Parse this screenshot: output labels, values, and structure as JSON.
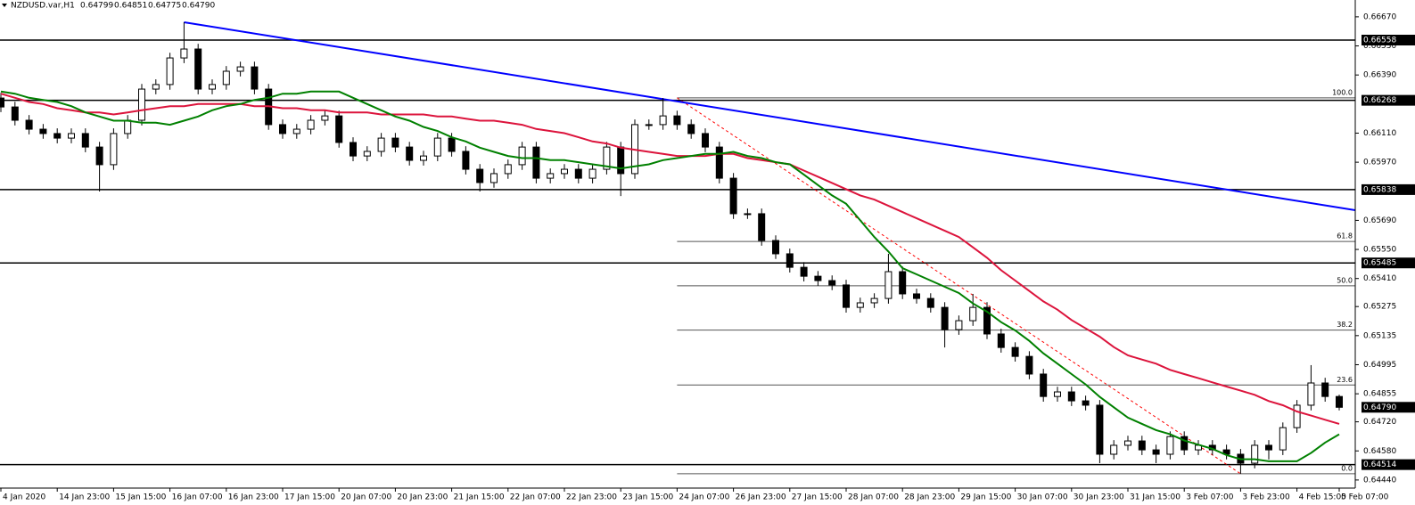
{
  "header": {
    "symbol": "NZDUSD.var,H1",
    "quote": [
      0.64799,
      0.64851,
      0.64775,
      {
        "value": 0.6479,
        "label": "0.64790"
      }
    ]
  },
  "chart_data": {
    "type": "candlestick",
    "categories": [
      "4 Jan 2020",
      null,
      null,
      null,
      "14 Jan 23:00",
      null,
      null,
      null,
      "15 Jan 15:00",
      null,
      null,
      null,
      "16 Jan 07:00",
      null,
      null,
      null,
      "16 Jan 23:00",
      null,
      null,
      null,
      "17 Jan 15:00",
      null,
      null,
      null,
      "20 Jan 07:00",
      null,
      null,
      null,
      "20 Jan 23:00",
      null,
      null,
      null,
      "21 Jan 15:00",
      null,
      null,
      null,
      "22 Jan 07:00",
      null,
      null,
      null,
      "22 Jan 23:00",
      null,
      null,
      null,
      "23 Jan 15:00",
      null,
      null,
      null,
      "24 Jan 07:00",
      null,
      null,
      null,
      "26 Jan 23:00",
      null,
      null,
      null,
      "27 Jan 15:00",
      null,
      null,
      null,
      "28 Jan 07:00",
      null,
      null,
      null,
      "28 Jan 23:00",
      null,
      null,
      null,
      "29 Jan 15:00",
      null,
      null,
      null,
      "30 Jan 07:00",
      null,
      null,
      null,
      "30 Jan 23:00",
      null,
      null,
      null,
      "31 Jan 15:00",
      null,
      null,
      null,
      "3 Feb 07:00",
      null,
      null,
      null,
      "3 Feb 23:00",
      null,
      null,
      null,
      "4 Feb 15:00",
      null,
      null,
      "5 Feb 07:00"
    ],
    "open": [
      0.66279,
      0.66236,
      0.66172,
      0.66129,
      0.66108,
      0.66086,
      0.66108,
      0.66043,
      0.65958,
      0.66108,
      0.66172,
      0.66322,
      0.66344,
      0.66472,
      0.66515,
      0.66322,
      0.66344,
      0.66408,
      0.66429,
      0.66322,
      0.66151,
      0.66108,
      0.66129,
      0.66172,
      0.66193,
      0.66065,
      0.66,
      0.66022,
      0.66086,
      0.66043,
      0.65979,
      0.66,
      0.66086,
      0.66022,
      0.65936,
      0.65872,
      0.65915,
      0.65958,
      0.66043,
      0.65893,
      0.65915,
      0.65936,
      0.65893,
      0.65936,
      0.66043,
      0.65915,
      0.66151,
      0.66151,
      0.66193,
      0.66151,
      0.66108,
      0.66043,
      0.65893,
      0.65722,
      0.65722,
      0.65593,
      0.65529,
      0.65464,
      0.65421,
      0.654,
      0.65379,
      0.65271,
      0.65293,
      0.65314,
      0.65443,
      0.65336,
      0.65314,
      0.65271,
      0.65164,
      0.65207,
      0.65271,
      0.65143,
      0.65078,
      0.65035,
      0.6495,
      0.64842,
      0.64864,
      0.64821,
      0.648,
      0.64564,
      0.64607,
      0.64628,
      0.64585,
      0.64564,
      0.64649,
      0.64585,
      0.64607,
      0.64585,
      0.64564,
      0.64521,
      0.64607,
      0.64585,
      0.64692,
      0.648,
      0.64907,
      0.64842
    ],
    "high": [
      0.66304,
      0.66261,
      0.66197,
      0.66154,
      0.66133,
      0.66133,
      0.66133,
      0.66068,
      0.66133,
      0.66197,
      0.66347,
      0.66369,
      0.66497,
      0.66644,
      0.6654,
      0.66369,
      0.66433,
      0.66454,
      0.66454,
      0.66347,
      0.66176,
      0.66154,
      0.66197,
      0.66218,
      0.66218,
      0.6609,
      0.66047,
      0.66111,
      0.66111,
      0.66068,
      0.66025,
      0.66111,
      0.66111,
      0.66047,
      0.65961,
      0.6594,
      0.65983,
      0.66068,
      0.66068,
      0.6594,
      0.65961,
      0.65961,
      0.65961,
      0.66068,
      0.66068,
      0.66176,
      0.66176,
      0.66279,
      0.66218,
      0.66176,
      0.66133,
      0.66068,
      0.65918,
      0.65747,
      0.65747,
      0.65618,
      0.65554,
      0.65489,
      0.65446,
      0.65425,
      0.65404,
      0.65318,
      0.65339,
      0.65529,
      0.65468,
      0.65361,
      0.65339,
      0.65296,
      0.65232,
      0.65336,
      0.65296,
      0.65168,
      0.65103,
      0.6506,
      0.64975,
      0.64889,
      0.64889,
      0.64846,
      0.64825,
      0.64632,
      0.64653,
      0.64653,
      0.6461,
      0.64674,
      0.64674,
      0.64632,
      0.64632,
      0.6461,
      0.64589,
      0.64632,
      0.64632,
      0.64717,
      0.64825,
      0.64993,
      0.64932,
      0.64851
    ],
    "low": [
      0.66211,
      0.66147,
      0.66104,
      0.66083,
      0.66061,
      0.66061,
      0.66018,
      0.65829,
      0.65933,
      0.66083,
      0.66147,
      0.66297,
      0.66319,
      0.66447,
      0.66297,
      0.66297,
      0.66319,
      0.66383,
      0.66297,
      0.66126,
      0.66083,
      0.66083,
      0.66104,
      0.66147,
      0.6604,
      0.65975,
      0.65975,
      0.65997,
      0.66018,
      0.65954,
      0.65954,
      0.65975,
      0.65997,
      0.65911,
      0.65829,
      0.65847,
      0.6589,
      0.65933,
      0.65868,
      0.65868,
      0.6589,
      0.65868,
      0.65868,
      0.65911,
      0.65807,
      0.6589,
      0.66126,
      0.66126,
      0.66126,
      0.66083,
      0.66018,
      0.65868,
      0.65697,
      0.65697,
      0.65568,
      0.65504,
      0.65439,
      0.65396,
      0.65375,
      0.65354,
      0.65246,
      0.65246,
      0.65268,
      0.65289,
      0.65311,
      0.65289,
      0.65246,
      0.65078,
      0.65139,
      0.65182,
      0.65118,
      0.65053,
      0.6501,
      0.64925,
      0.64817,
      0.64817,
      0.64796,
      0.64775,
      0.64521,
      0.64539,
      0.64582,
      0.6456,
      0.64521,
      0.64539,
      0.6456,
      0.6456,
      0.6456,
      0.64539,
      0.6447,
      0.64496,
      0.64539,
      0.6456,
      0.64667,
      0.64775,
      0.64817,
      0.64775
    ],
    "close": [
      0.66236,
      0.66172,
      0.66129,
      0.66108,
      0.66086,
      0.66108,
      0.66043,
      0.65958,
      0.66108,
      0.66172,
      0.66322,
      0.66344,
      0.66472,
      0.66515,
      0.66322,
      0.66344,
      0.66408,
      0.66429,
      0.66322,
      0.66151,
      0.66108,
      0.66129,
      0.66172,
      0.66193,
      0.66065,
      0.66,
      0.66022,
      0.66086,
      0.66043,
      0.65979,
      0.66,
      0.66086,
      0.66022,
      0.65936,
      0.65872,
      0.65915,
      0.65958,
      0.66043,
      0.65893,
      0.65915,
      0.65936,
      0.65893,
      0.65936,
      0.66043,
      0.65915,
      0.66151,
      0.66151,
      0.66193,
      0.66151,
      0.66108,
      0.66043,
      0.65893,
      0.65722,
      0.65722,
      0.65593,
      0.65529,
      0.65464,
      0.65421,
      0.654,
      0.65379,
      0.65271,
      0.65293,
      0.65314,
      0.65443,
      0.65336,
      0.65314,
      0.65271,
      0.65164,
      0.65207,
      0.65271,
      0.65143,
      0.65078,
      0.65035,
      0.6495,
      0.64842,
      0.64864,
      0.64821,
      0.648,
      0.64564,
      0.64607,
      0.64628,
      0.64585,
      0.64564,
      0.64649,
      0.64585,
      0.64607,
      0.64585,
      0.64564,
      0.64521,
      0.64607,
      0.64585,
      0.64692,
      0.648,
      0.64907,
      0.64842,
      0.6479
    ],
    "ylim": [
      0.64401,
      0.66751
    ],
    "yticks": [
      {
        "value": 0.6667,
        "label": "0.66670"
      },
      {
        "value": 0.6653,
        "label": "0.66530"
      },
      {
        "value": 0.6639,
        "label": "0.66390"
      },
      {
        "value": 0.6611,
        "label": "0.66110"
      },
      {
        "value": 0.6597,
        "label": "0.65970"
      },
      {
        "value": 0.6569,
        "label": "0.65690"
      },
      {
        "value": 0.6555,
        "label": "0.65550"
      },
      {
        "value": 0.6541,
        "label": "0.65410"
      },
      0.65275,
      0.65135,
      0.64995,
      0.64855,
      {
        "value": 0.6472,
        "label": "0.64720"
      },
      {
        "value": 0.6458,
        "label": "0.64580"
      },
      {
        "value": 0.6444,
        "label": "0.64440"
      }
    ],
    "bull_color": "#ffffff",
    "bear_color": "#000000",
    "moving_averages": [
      {
        "color": "#dc143c",
        "values": [
          0.663,
          0.6628,
          0.6626,
          0.6625,
          0.6623,
          0.6622,
          0.6621,
          0.6621,
          0.662,
          0.6621,
          0.6622,
          0.6623,
          0.6624,
          0.6624,
          0.6625,
          0.6625,
          0.6625,
          0.6625,
          0.6624,
          0.6624,
          0.6623,
          0.6623,
          0.6622,
          0.6622,
          0.6621,
          0.6621,
          0.6621,
          0.662,
          0.662,
          0.662,
          0.662,
          0.6619,
          0.6619,
          0.6618,
          0.6617,
          0.6617,
          0.6616,
          0.6615,
          0.6613,
          0.6612,
          0.6611,
          0.6609,
          0.6607,
          0.6606,
          0.6604,
          0.6603,
          0.6602,
          0.6601,
          0.66,
          0.66,
          0.66,
          0.6601,
          0.6601,
          0.6599,
          0.6598,
          0.6597,
          0.6596,
          0.6593,
          0.659,
          0.6587,
          0.6584,
          0.6581,
          0.6579,
          0.6576,
          0.6573,
          0.657,
          0.6567,
          0.6564,
          0.6561,
          0.6556,
          0.6551,
          0.6545,
          0.654,
          0.6535,
          0.653,
          0.6526,
          0.6521,
          0.6517,
          0.6513,
          0.6508,
          0.6504,
          0.6502,
          0.65,
          0.6497,
          0.6495,
          0.6493,
          0.6491,
          0.6489,
          0.6487,
          0.6485,
          0.6482,
          0.648,
          0.6477,
          0.6475,
          0.6473,
          0.6471
        ]
      },
      {
        "color": "#008000",
        "values": [
          0.6631,
          0.663,
          0.6628,
          0.6627,
          0.6626,
          0.6624,
          0.6621,
          0.6619,
          0.6617,
          0.6617,
          0.6616,
          0.6616,
          0.6615,
          0.6617,
          0.6619,
          0.6622,
          0.6624,
          0.6625,
          0.6627,
          0.6628,
          0.663,
          0.663,
          0.6631,
          0.6631,
          0.6631,
          0.6628,
          0.6625,
          0.6622,
          0.6619,
          0.6617,
          0.6614,
          0.6612,
          0.6609,
          0.6607,
          0.6604,
          0.6602,
          0.66,
          0.6599,
          0.6599,
          0.6598,
          0.6598,
          0.6597,
          0.6596,
          0.6595,
          0.6594,
          0.6595,
          0.6596,
          0.6598,
          0.6599,
          0.66,
          0.6601,
          0.6601,
          0.6602,
          0.66,
          0.6599,
          0.6597,
          0.6596,
          0.6591,
          0.6586,
          0.6581,
          0.6577,
          0.6569,
          0.6561,
          0.6554,
          0.6546,
          0.6543,
          0.654,
          0.6537,
          0.6534,
          0.6529,
          0.6525,
          0.652,
          0.6516,
          0.6511,
          0.6505,
          0.65,
          0.6495,
          0.649,
          0.6484,
          0.6479,
          0.6474,
          0.6471,
          0.6468,
          0.6466,
          0.6463,
          0.6461,
          0.6459,
          0.6456,
          0.6454,
          0.6454,
          0.6453,
          0.6453,
          0.6453,
          0.6457,
          0.6462,
          0.6466
        ]
      }
    ],
    "trendline": {
      "color": "#0000ff",
      "values": [
        0.66644,
        0.65739
      ]
    },
    "levels": [
      0.66558,
      0.66268,
      0.65838,
      0.65485,
      0.64514
    ],
    "current_price": {
      "value": 0.6479,
      "label": "0.64790"
    },
    "fibonacci": {
      "high": 0.6628,
      "low": 0.6447,
      "color": "#ff0000",
      "levels": [
        {
          "value": 100,
          "label": "100.0"
        },
        61.8,
        {
          "value": 50,
          "label": "50.0"
        },
        38.2,
        23.6,
        {
          "value": 0,
          "label": "0.0"
        }
      ]
    }
  }
}
